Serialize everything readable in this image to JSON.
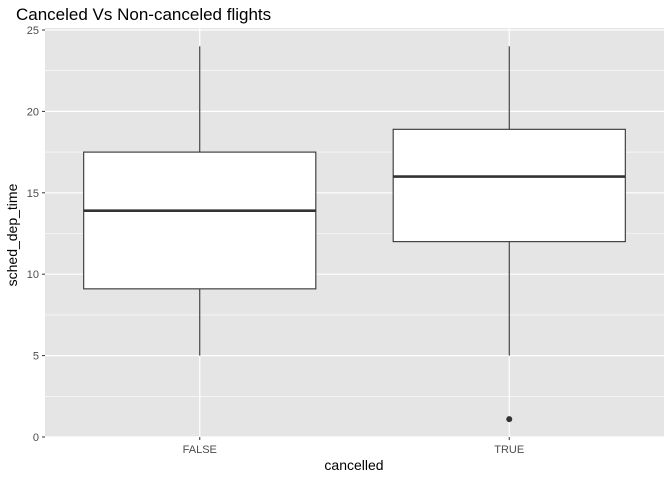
{
  "chart_data": {
    "type": "boxplot",
    "title": "Canceled Vs Non-canceled flights",
    "xlabel": "cancelled",
    "ylabel": "sched_dep_time",
    "categories": [
      "FALSE",
      "TRUE"
    ],
    "ylim": [
      0,
      25
    ],
    "yticks": [
      0,
      5,
      10,
      15,
      20,
      25
    ],
    "grid": true,
    "boxes": [
      {
        "category": "FALSE",
        "whisker_low": 5,
        "q1": 9.1,
        "median": 13.9,
        "q3": 17.5,
        "whisker_high": 24,
        "outliers": []
      },
      {
        "category": "TRUE",
        "whisker_low": 5,
        "q1": 12,
        "median": 16,
        "q3": 18.9,
        "whisker_high": 24,
        "outliers": [
          1.1
        ]
      }
    ],
    "colors": {
      "panel_background": "#e5e5e5",
      "grid_line": "#ffffff",
      "box_fill": "#ffffff",
      "box_stroke": "#333333",
      "outlier": "#333333"
    }
  }
}
